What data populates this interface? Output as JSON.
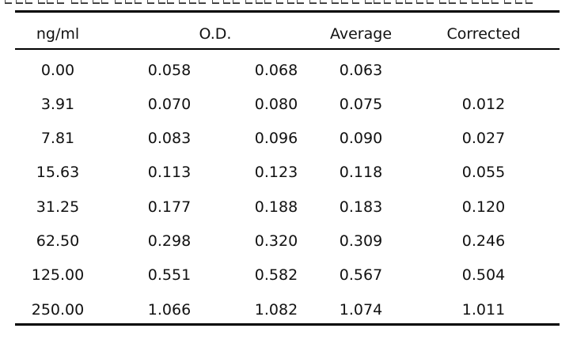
{
  "table": {
    "headers": {
      "concentration": "ng/ml",
      "od": "O.D.",
      "average": "Average",
      "corrected": "Corrected"
    },
    "rows": [
      [
        "0.00",
        "0.058",
        "0.068",
        "0.063",
        ""
      ],
      [
        "3.91",
        "0.070",
        "0.080",
        "0.075",
        "0.012"
      ],
      [
        "7.81",
        "0.083",
        "0.096",
        "0.090",
        "0.027"
      ],
      [
        "15.63",
        "0.113",
        "0.123",
        "0.118",
        "0.055"
      ],
      [
        "31.25",
        "0.177",
        "0.188",
        "0.183",
        "0.120"
      ],
      [
        "62.50",
        "0.298",
        "0.320",
        "0.309",
        "0.246"
      ],
      [
        "125.00",
        "0.551",
        "0.582",
        "0.567",
        "0.504"
      ],
      [
        "250.00",
        "1.066",
        "1.082",
        "1.074",
        "1.011"
      ]
    ]
  }
}
